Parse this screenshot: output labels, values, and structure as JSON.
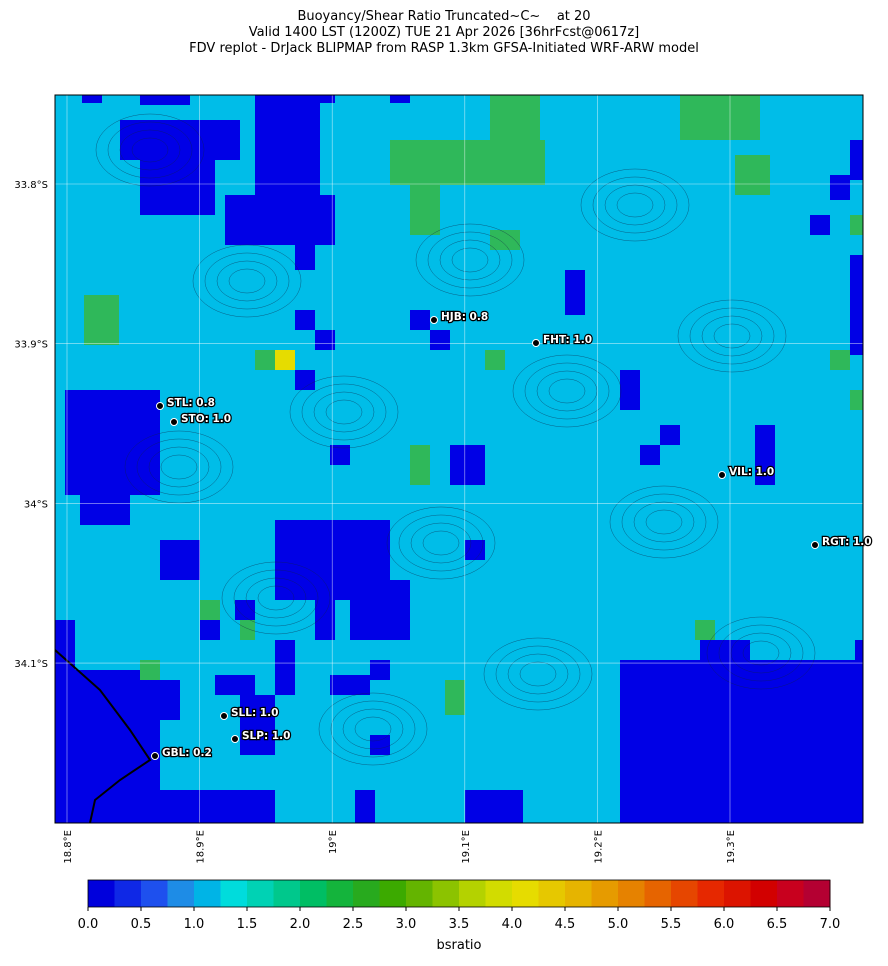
{
  "header": {
    "title_lines": [
      "Buoyancy/Shear Ratio Truncated~C~    at 20",
      "Valid 1400 LST (1200Z) TUE 21 Apr 2026 [36hrFcst@0617z]",
      "FDV replot - DrJack BLIPMAP from RASP 1.3km GFSA-Initiated WRF-ARW model"
    ]
  },
  "map": {
    "lat_ticks": [
      {
        "value": -33.8,
        "label": "33.8°S"
      },
      {
        "value": -33.9,
        "label": "33.9°S"
      },
      {
        "value": -34.0,
        "label": "34°S"
      },
      {
        "value": -34.1,
        "label": "34.1°S"
      }
    ],
    "lon_ticks": [
      {
        "value": 18.8,
        "label": "18.8°E"
      },
      {
        "value": 18.9,
        "label": "18.9°E"
      },
      {
        "value": 19.0,
        "label": "19°E"
      },
      {
        "value": 19.1,
        "label": "19.1°E"
      },
      {
        "value": 19.2,
        "label": "19.2°E"
      },
      {
        "value": 19.3,
        "label": "19.3°E"
      }
    ],
    "stations": [
      "HJB: 0.8",
      "FHT: 1.0",
      "STL: 0.8",
      "STO: 1.0",
      "VIL: 1.0",
      "RGT: 1.0",
      "SLL: 1.0",
      "SLP: 1.0",
      "GBL: 0.2"
    ]
  },
  "colorbar": {
    "label": "bsratio",
    "lim": [
      0,
      7
    ],
    "ticks": [
      {
        "value": 0,
        "label": "0.0"
      },
      {
        "value": 0.5,
        "label": "0.5"
      },
      {
        "value": 1,
        "label": "1.0"
      },
      {
        "value": 1.5,
        "label": "1.5"
      },
      {
        "value": 2,
        "label": "2.0"
      },
      {
        "value": 2.5,
        "label": "2.5"
      },
      {
        "value": 3,
        "label": "3.0"
      },
      {
        "value": 3.5,
        "label": "3.5"
      },
      {
        "value": 4,
        "label": "4.0"
      },
      {
        "value": 4.5,
        "label": "4.5"
      },
      {
        "value": 5,
        "label": "5.0"
      },
      {
        "value": 5.5,
        "label": "5.5"
      },
      {
        "value": 6,
        "label": "6.0"
      },
      {
        "value": 6.5,
        "label": "6.5"
      },
      {
        "value": 7,
        "label": "7.0"
      }
    ],
    "colors": [
      "#0000dc",
      "#0f28e6",
      "#1e50ee",
      "#1e8ce6",
      "#00b4e6",
      "#00dcdc",
      "#00d2b4",
      "#00c88c",
      "#00be64",
      "#14b43c",
      "#28aa1e",
      "#3caa00",
      "#64b400",
      "#8cc300",
      "#b4d200",
      "#d2dc00",
      "#e6dc00",
      "#e6c800",
      "#e6b400",
      "#e69b00",
      "#e68200",
      "#e66400",
      "#e64600",
      "#e62800",
      "#dc1400",
      "#d20000",
      "#c8001e",
      "#b40032"
    ]
  }
}
